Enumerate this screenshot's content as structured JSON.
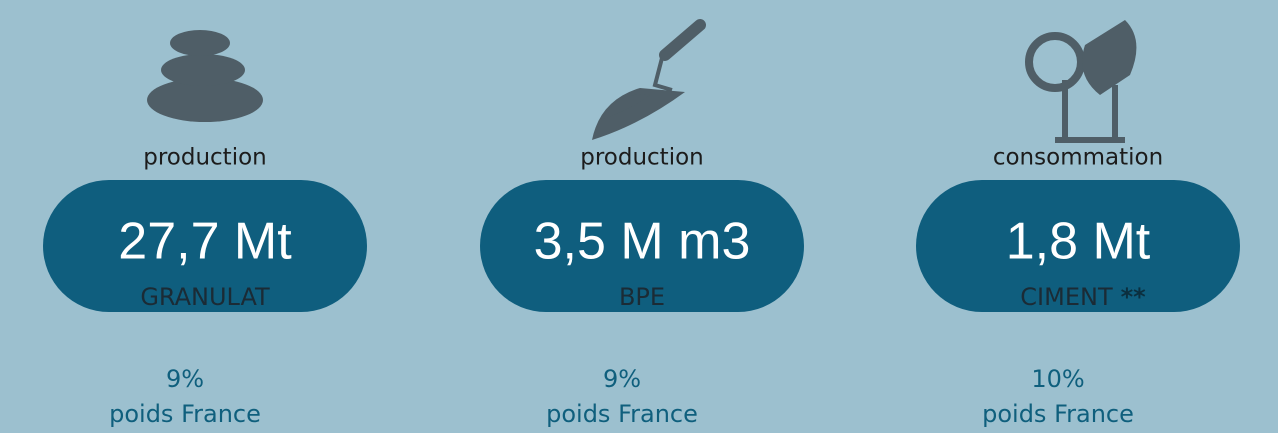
{
  "cards": [
    {
      "label": "production",
      "value": "27,7 Mt",
      "name": "GRANULAT",
      "percent": "9%",
      "caption": "poids France"
    },
    {
      "label": "production",
      "value": "3,5 M m3",
      "name": "BPE",
      "percent": "9%",
      "caption": "poids France"
    },
    {
      "label": "consommation",
      "value": "1,8 Mt",
      "name": "CIMENT",
      "mark": "**",
      "percent": "10%",
      "caption": "poids France"
    }
  ]
}
